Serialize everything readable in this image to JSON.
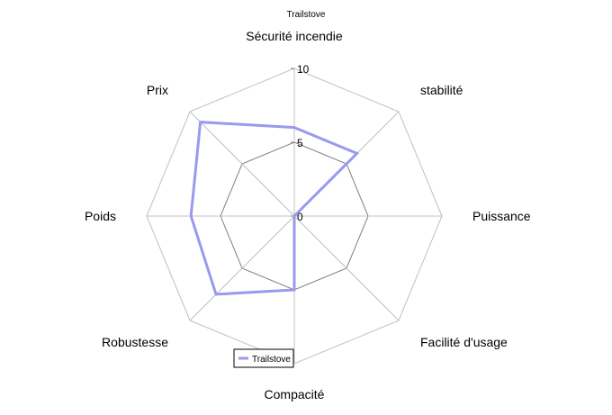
{
  "chart_data": {
    "type": "radar",
    "title": "Trailstove",
    "axes": [
      "Sécurité incendie",
      "stabilité",
      "Puissance",
      "Facilité d'usage",
      "Compacité",
      "Robustesse",
      "Poids",
      "Prix"
    ],
    "rmin": 0,
    "rmax": 10,
    "ticks": [
      "0",
      "5",
      "10"
    ],
    "series": [
      {
        "name": "Trailstove",
        "color": "#9999ee",
        "values": [
          6,
          6,
          0,
          0,
          5,
          7.5,
          7,
          9
        ]
      }
    ],
    "grid_color_inner": "#808080",
    "grid_color_outer": "#c0c0c0",
    "legend_position": "bottom-left"
  }
}
